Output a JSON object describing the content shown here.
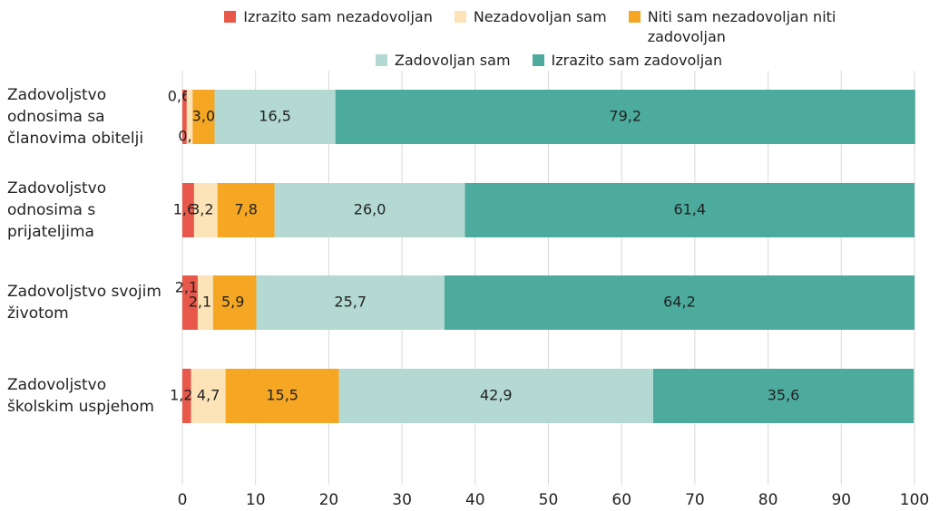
{
  "chart_data": {
    "type": "stacked-bar-horizontal",
    "categories": [
      "Zadovoljstvo odnosima sa članovima obitelji",
      "Zadovoljstvo odnosima s prijateljima",
      "Zadovoljstvo svojim životom",
      "Zadovoljstvo školskim uspjehom"
    ],
    "series": [
      {
        "name": "Izrazito sam nezadovoljan",
        "color": "#e8584a",
        "values": [
          0.6,
          1.6,
          2.1,
          1.2
        ],
        "value_labels": [
          "0,6",
          "1,6",
          "2,1",
          "1,2"
        ]
      },
      {
        "name": "Nezadovoljan sam",
        "color": "#fde3b8",
        "values": [
          0.8,
          3.2,
          2.1,
          4.7
        ],
        "value_labels": [
          "0,8",
          "3,2",
          "2,1",
          "4,7"
        ]
      },
      {
        "name": "Niti sam nezadovoljan niti zadovoljan",
        "color": "#f5a623",
        "values": [
          3.0,
          7.8,
          5.9,
          15.5
        ],
        "value_labels": [
          "3,0",
          "7,8",
          "5,9",
          "15,5"
        ]
      },
      {
        "name": "Zadovoljan sam",
        "color": "#b3d9d2",
        "values": [
          16.5,
          26.0,
          25.7,
          42.9
        ],
        "value_labels": [
          "16,5",
          "26,0",
          "25,7",
          "42,9"
        ]
      },
      {
        "name": "Izrazito sam zadovoljan",
        "color": "#4dab9e",
        "values": [
          79.2,
          61.4,
          64.2,
          35.6
        ],
        "value_labels": [
          "79,2",
          "61,4",
          "64,2",
          "35,6"
        ]
      }
    ],
    "xlim": [
      0,
      100
    ],
    "xticks": [
      0,
      10,
      20,
      30,
      40,
      50,
      60,
      70,
      80,
      90,
      100
    ],
    "grid": true,
    "legend": "top"
  }
}
